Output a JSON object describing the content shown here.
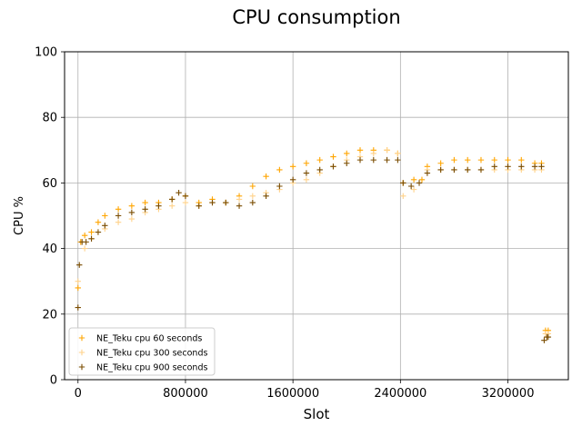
{
  "chart_data": {
    "type": "scatter",
    "title": "CPU consumption",
    "xlabel": "Slot",
    "ylabel": "CPU %",
    "xlim": [
      -100000,
      3650000
    ],
    "ylim": [
      0,
      100
    ],
    "xticks": [
      0,
      800000,
      1600000,
      2400000,
      3200000
    ],
    "xtick_labels": [
      "0",
      "800000",
      "1600000",
      "2400000",
      "3200000"
    ],
    "yticks": [
      0,
      20,
      40,
      60,
      80,
      100
    ],
    "ytick_labels": [
      "0",
      "20",
      "40",
      "60",
      "80",
      "100"
    ],
    "grid": true,
    "legend_position": "lower-left",
    "marker": "+",
    "series": [
      {
        "name": "NE_Teku cpu 60 seconds",
        "color": "#ffa500",
        "x": [
          0,
          20000,
          50000,
          100000,
          150000,
          200000,
          300000,
          400000,
          500000,
          600000,
          700000,
          800000,
          900000,
          1000000,
          1100000,
          1200000,
          1300000,
          1400000,
          1500000,
          1600000,
          1700000,
          1800000,
          1900000,
          2000000,
          2100000,
          2200000,
          2300000,
          2380000,
          2420000,
          2500000,
          2560000,
          2600000,
          2700000,
          2800000,
          2900000,
          3000000,
          3100000,
          3200000,
          3300000,
          3400000,
          3450000,
          3480000,
          3500000
        ],
        "y": [
          28,
          42,
          44,
          45,
          48,
          50,
          52,
          53,
          54,
          54,
          55,
          56,
          54,
          55,
          54,
          56,
          59,
          62,
          64,
          65,
          66,
          67,
          68,
          69,
          70,
          70,
          70,
          69,
          60,
          61,
          61,
          65,
          66,
          67,
          67,
          67,
          67,
          67,
          67,
          66,
          66,
          15,
          15
        ]
      },
      {
        "name": "NE_Teku cpu 300 seconds",
        "color": "#ffd28a",
        "x": [
          0,
          50000,
          100000,
          200000,
          300000,
          400000,
          500000,
          600000,
          700000,
          800000,
          900000,
          1000000,
          1100000,
          1200000,
          1300000,
          1400000,
          1500000,
          1600000,
          1700000,
          1800000,
          1900000,
          2000000,
          2100000,
          2200000,
          2300000,
          2380000,
          2420000,
          2500000,
          2600000,
          2700000,
          2800000,
          2900000,
          3000000,
          3100000,
          3200000,
          3300000,
          3400000,
          3450000,
          3480000,
          3500000
        ],
        "y": [
          30,
          40,
          43,
          46,
          48,
          49,
          51,
          52,
          53,
          54,
          53,
          54,
          54,
          55,
          56,
          57,
          58,
          60,
          61,
          63,
          65,
          67,
          68,
          69,
          70,
          69,
          56,
          58,
          64,
          64,
          64,
          64,
          64,
          64,
          64,
          64,
          64,
          64,
          14,
          14
        ]
      },
      {
        "name": "NE_Teku cpu 900 seconds",
        "color": "#7a4c00",
        "x": [
          0,
          10000,
          30000,
          60000,
          100000,
          150000,
          200000,
          300000,
          400000,
          500000,
          600000,
          700000,
          750000,
          800000,
          900000,
          1000000,
          1100000,
          1200000,
          1300000,
          1400000,
          1500000,
          1600000,
          1700000,
          1800000,
          1900000,
          2000000,
          2100000,
          2200000,
          2300000,
          2380000,
          2420000,
          2480000,
          2540000,
          2600000,
          2700000,
          2800000,
          2900000,
          3000000,
          3100000,
          3200000,
          3300000,
          3400000,
          3450000,
          3470000,
          3490000,
          3500000
        ],
        "y": [
          22,
          35,
          42,
          42,
          43,
          45,
          47,
          50,
          51,
          52,
          53,
          55,
          57,
          56,
          53,
          54,
          54,
          53,
          54,
          56,
          59,
          61,
          63,
          64,
          65,
          66,
          67,
          67,
          67,
          67,
          60,
          59,
          60,
          63,
          64,
          64,
          64,
          64,
          65,
          65,
          65,
          65,
          65,
          12,
          13,
          13
        ]
      }
    ]
  }
}
